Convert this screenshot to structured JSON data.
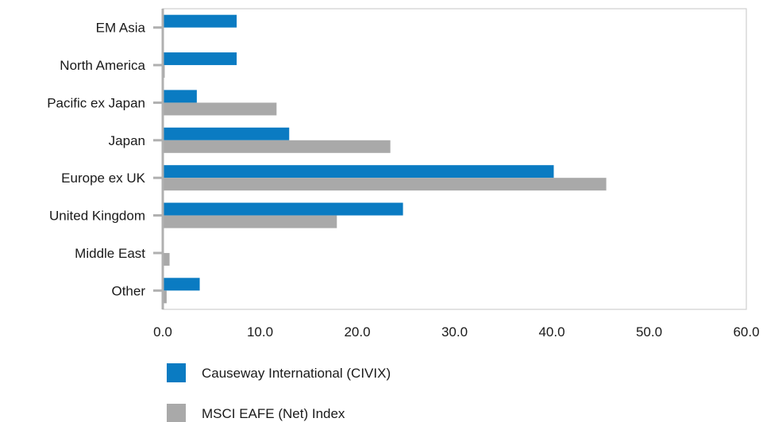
{
  "chart_data": {
    "type": "bar",
    "orientation": "horizontal",
    "categories": [
      "EM Asia",
      "North America",
      "Pacific ex Japan",
      "Japan",
      "Europe ex UK",
      "United Kingdom",
      "Middle East",
      "Other"
    ],
    "series": [
      {
        "name": "Causeway International (CIVIX)",
        "color": "#0a7bc2",
        "values": [
          7.6,
          7.6,
          3.5,
          13.0,
          40.2,
          24.7,
          0.0,
          3.8
        ]
      },
      {
        "name": "MSCI EAFE (Net) Index",
        "color": "#a9a9a9",
        "values": [
          0.0,
          0.2,
          11.7,
          23.4,
          45.6,
          17.9,
          0.7,
          0.4
        ]
      }
    ],
    "xlim": [
      0,
      60
    ],
    "xticks": [
      "0.0",
      "10.0",
      "20.0",
      "30.0",
      "40.0",
      "50.0",
      "60.0"
    ],
    "xtick_values": [
      0,
      10,
      20,
      30,
      40,
      50,
      60
    ],
    "grid": false,
    "legend_position": "bottom-left",
    "colors": {
      "axis": "#b0b0b0",
      "frame": "#cfcfcf"
    }
  }
}
